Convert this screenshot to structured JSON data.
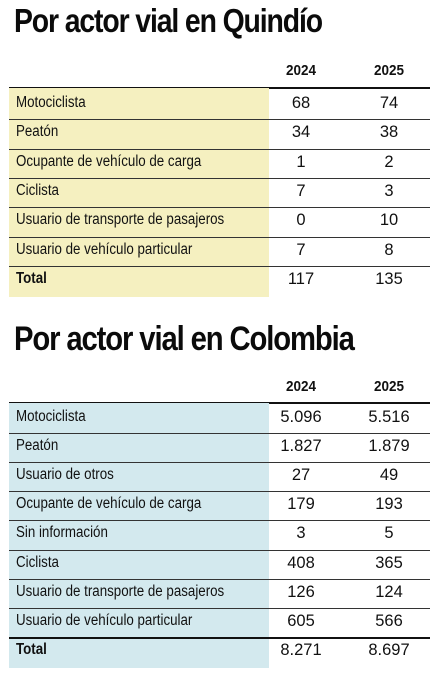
{
  "chart_data": [
    {
      "type": "table",
      "title": "Por actor vial en Quindío",
      "columns": [
        "2024",
        "2025"
      ],
      "band_color": "#f5f0c0",
      "rows": [
        {
          "label": "Motociclista",
          "values": [
            "68",
            "74"
          ]
        },
        {
          "label": "Peatón",
          "values": [
            "34",
            "38"
          ]
        },
        {
          "label": "Ocupante de vehículo de carga",
          "values": [
            "1",
            "2"
          ]
        },
        {
          "label": "Ciclista",
          "values": [
            "7",
            "3"
          ]
        },
        {
          "label": "Usuario de transporte de pasajeros",
          "values": [
            "0",
            "10"
          ]
        },
        {
          "label": "Usuario de vehículo particular",
          "values": [
            "7",
            "8"
          ]
        }
      ],
      "total": {
        "label": "Total",
        "values": [
          "117",
          "135"
        ]
      }
    },
    {
      "type": "table",
      "title": "Por actor vial en Colombia",
      "columns": [
        "2024",
        "2025"
      ],
      "band_color": "#d3e9ee",
      "rows": [
        {
          "label": "Motociclista",
          "values": [
            "5.096",
            "5.516"
          ]
        },
        {
          "label": "Peatón",
          "values": [
            "1.827",
            "1.879"
          ]
        },
        {
          "label": "Usuario de otros",
          "values": [
            "27",
            "49"
          ]
        },
        {
          "label": "Ocupante de vehículo de carga",
          "values": [
            "179",
            "193"
          ]
        },
        {
          "label": "Sin información",
          "values": [
            "3",
            "5"
          ]
        },
        {
          "label": "Ciclista",
          "values": [
            "408",
            "365"
          ]
        },
        {
          "label": "Usuario de transporte de pasajeros",
          "values": [
            "126",
            "124"
          ]
        },
        {
          "label": "Usuario de vehículo particular",
          "values": [
            "605",
            "566"
          ]
        }
      ],
      "total": {
        "label": "Total",
        "values": [
          "8.271",
          "8.697"
        ]
      }
    }
  ]
}
